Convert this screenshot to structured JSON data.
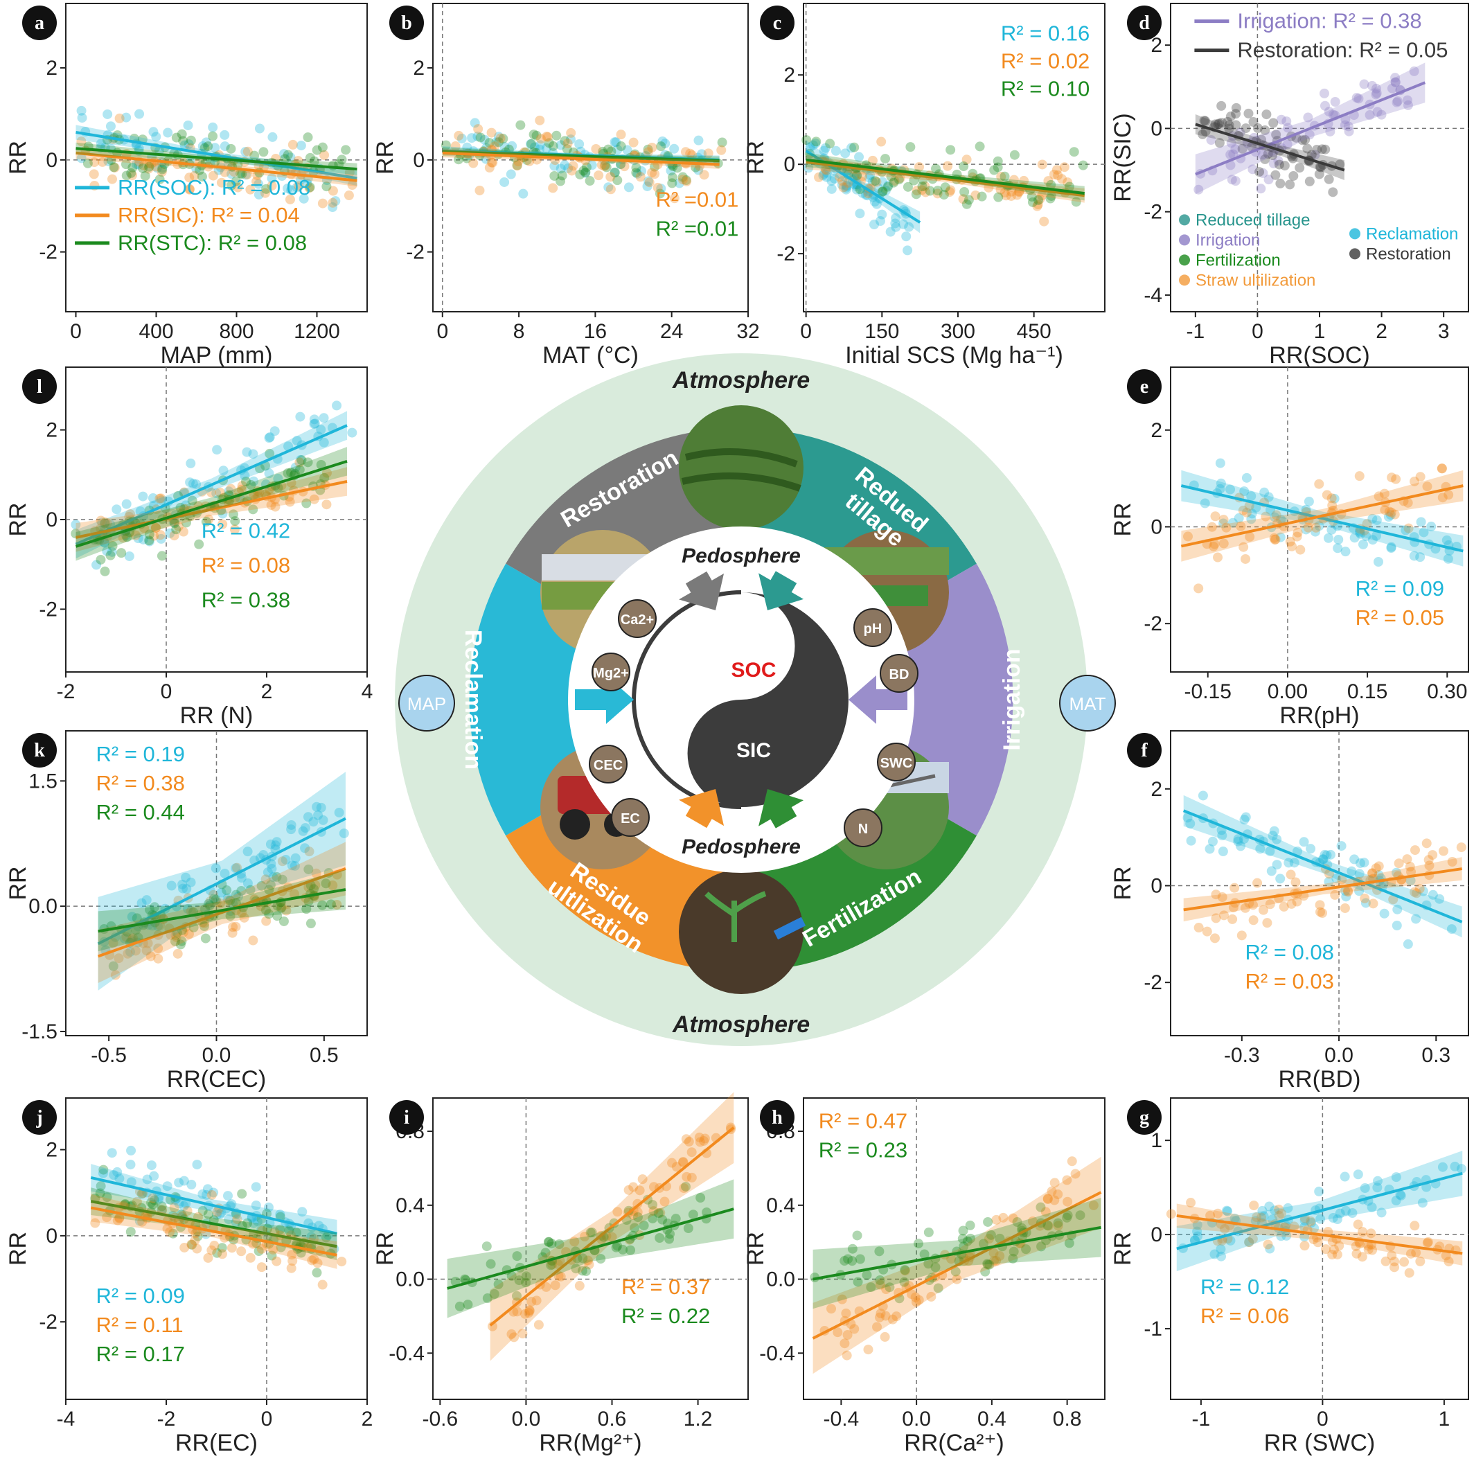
{
  "colors": {
    "soc": "#1fb6d9",
    "sic": "#f28a1e",
    "stc": "#1b8a1e",
    "irrigation": "#8c7dc4",
    "restoration": "#3a3a3a",
    "reduced_tillage": "#27948c",
    "straw": "#f29a3a",
    "reclamation_band": "#29b9d6",
    "restoration_band": "#7a7a7a",
    "tillage_band": "#2c9a90",
    "irrigation_band": "#9a8ecb",
    "fertilization_band": "#2f8f35",
    "residue_band": "#f2922a",
    "atmosphere_ring": "#d9ebdc"
  },
  "center": {
    "atmosphere_top": "Atmosphere",
    "atmosphere_bottom": "Atmosphere",
    "pedosphere_top": "Pedosphere",
    "pedosphere_bottom": "Pedosphere",
    "soc": "SOC",
    "sic": "SIC",
    "map": "MAP",
    "mat": "MAT",
    "practices": [
      "Restoration",
      "Redued tillage",
      "Irrigation",
      "Fertilization",
      "Residue ultlization",
      "Reclamation"
    ],
    "properties": [
      "Ca2+",
      "Mg2+",
      "CEC",
      "EC",
      "pH",
      "BD",
      "SWC",
      "N"
    ]
  },
  "chart_data": [
    {
      "id": "a",
      "type": "scatter",
      "xlabel": "MAP (mm)",
      "ylabel": "RR",
      "xlim": [
        -50,
        1450
      ],
      "ylim": [
        -3.3,
        3.4
      ],
      "xticks": [
        0,
        400,
        800,
        1200
      ],
      "yticks": [
        -2,
        0,
        2
      ],
      "refx": null,
      "refy": 0,
      "series": [
        {
          "name": "RR(SOC)",
          "color": "soc",
          "fit": [
            [
              0,
              0.6
            ],
            [
              1400,
              -0.4
            ]
          ],
          "band": 0.1
        },
        {
          "name": "RR(SIC)",
          "color": "sic",
          "fit": [
            [
              0,
              0.15
            ],
            [
              1400,
              -0.45
            ]
          ],
          "band": 0.08
        },
        {
          "name": "RR(STC)",
          "color": "stc",
          "fit": [
            [
              0,
              0.25
            ],
            [
              1400,
              -0.2
            ]
          ],
          "band": 0.08
        }
      ],
      "labels": [
        {
          "text": "RR(SOC): R² = 0.08",
          "color": "soc"
        },
        {
          "text": "RR(SIC): R² = 0.04",
          "color": "sic"
        },
        {
          "text": "RR(STC): R² = 0.08",
          "color": "stc"
        }
      ]
    },
    {
      "id": "b",
      "type": "scatter",
      "xlabel": "MAT (°C)",
      "ylabel": "RR",
      "xlim": [
        -1,
        32
      ],
      "ylim": [
        -3.3,
        3.4
      ],
      "xticks": [
        0,
        8,
        16,
        24,
        32
      ],
      "yticks": [
        -2,
        0,
        2
      ],
      "refx": 0,
      "refy": 0,
      "series": [
        {
          "name": "",
          "color": "soc",
          "fit": [
            [
              0,
              0.2
            ],
            [
              29,
              0.0
            ]
          ],
          "band": 0.06
        },
        {
          "name": "",
          "color": "stc",
          "fit": [
            [
              0,
              0.18
            ],
            [
              29,
              -0.02
            ]
          ],
          "band": 0.06
        },
        {
          "name": "",
          "color": "sic",
          "fit": [
            [
              0,
              0.15
            ],
            [
              29,
              -0.1
            ]
          ],
          "band": 0.06
        }
      ],
      "labels": [
        {
          "text": "R² =0.01",
          "color": "sic"
        },
        {
          "text": "R² =0.01",
          "color": "stc"
        }
      ]
    },
    {
      "id": "c",
      "type": "scatter",
      "xlabel": "Initial SCS (Mg  ha⁻¹)",
      "ylabel": "RR",
      "xlim": [
        -5,
        590
      ],
      "ylim": [
        -3.3,
        3.6
      ],
      "xticks": [
        0,
        150,
        300,
        450
      ],
      "yticks": [
        -2,
        0,
        2
      ],
      "refx": 0,
      "refy": 0,
      "series": [
        {
          "name": "",
          "color": "soc",
          "fit": [
            [
              0,
              0.3
            ],
            [
              225,
              -1.3
            ]
          ],
          "band": 0.15
        },
        {
          "name": "",
          "color": "sic",
          "fit": [
            [
              0,
              0.05
            ],
            [
              550,
              -0.7
            ]
          ],
          "band": 0.1
        },
        {
          "name": "",
          "color": "stc",
          "fit": [
            [
              0,
              0.1
            ],
            [
              550,
              -0.65
            ]
          ],
          "band": 0.1
        }
      ],
      "labels": [
        {
          "text": "R² = 0.16",
          "color": "soc"
        },
        {
          "text": "R² = 0.02",
          "color": "sic"
        },
        {
          "text": "R² = 0.10",
          "color": "stc"
        }
      ]
    },
    {
      "id": "d",
      "type": "scatter",
      "xlabel": "RR(SOC)",
      "ylabel": "RR(SIC)",
      "xlim": [
        -1.4,
        3.4
      ],
      "ylim": [
        -4.4,
        3.0
      ],
      "xticks": [
        -1,
        0,
        1,
        2,
        3
      ],
      "yticks": [
        -4,
        -2,
        0,
        2
      ],
      "refx": 0,
      "refy": 0,
      "series": [
        {
          "name": "Irrigation",
          "color": "irrigation",
          "fit": [
            [
              -1.0,
              -1.1
            ],
            [
              2.7,
              1.1
            ]
          ],
          "band": 0.3
        },
        {
          "name": "Restoration",
          "color": "restoration",
          "fit": [
            [
              -1.0,
              0.1
            ],
            [
              1.4,
              -1.0
            ]
          ],
          "band": 0.15
        }
      ],
      "labels": [
        {
          "text": "Irrigation: R² = 0.38",
          "color": "irrigation"
        },
        {
          "text": "Restoration: R² = 0.05",
          "color": "restoration"
        }
      ],
      "legend": [
        {
          "text": "Reduced tillage",
          "color": "reduced_tillage"
        },
        {
          "text": "Irrigation",
          "color": "irrigation"
        },
        {
          "text": "Fertilization",
          "color": "stc"
        },
        {
          "text": "Straw ultilization",
          "color": "straw"
        },
        {
          "text": "Reclamation",
          "color": "soc"
        },
        {
          "text": "Restoration",
          "color": "restoration"
        }
      ]
    },
    {
      "id": "l",
      "type": "scatter",
      "xlabel": "RR (N)",
      "ylabel": "RR",
      "xlim": [
        -2,
        4
      ],
      "ylim": [
        -3.4,
        3.4
      ],
      "xticks": [
        -2,
        0,
        2,
        4
      ],
      "yticks": [
        -2,
        0,
        2
      ],
      "refx": 0,
      "refy": 0,
      "series": [
        {
          "name": "",
          "color": "soc",
          "fit": [
            [
              -1.8,
              -0.55
            ],
            [
              3.6,
              2.1
            ]
          ],
          "band": 0.2
        },
        {
          "name": "",
          "color": "sic",
          "fit": [
            [
              -1.8,
              -0.4
            ],
            [
              3.6,
              0.85
            ]
          ],
          "band": 0.2
        },
        {
          "name": "",
          "color": "stc",
          "fit": [
            [
              -1.8,
              -0.6
            ],
            [
              3.6,
              1.3
            ]
          ],
          "band": 0.2
        }
      ],
      "labels": [
        {
          "text": "R² = 0.42",
          "color": "soc"
        },
        {
          "text": "R² = 0.08",
          "color": "sic"
        },
        {
          "text": "R² = 0.38",
          "color": "stc"
        }
      ]
    },
    {
      "id": "e",
      "type": "scatter",
      "xlabel": "RR(pH)",
      "ylabel": "RR",
      "xlim": [
        -0.22,
        0.34
      ],
      "ylim": [
        -3.0,
        3.3
      ],
      "xticks": [
        -0.15,
        0.0,
        0.15,
        0.3
      ],
      "xticklabels": [
        "-0.15",
        "0.00",
        "0.15",
        "0.30"
      ],
      "yticks": [
        -2,
        0,
        2
      ],
      "refx": 0,
      "refy": 0,
      "series": [
        {
          "name": "",
          "color": "soc",
          "fit": [
            [
              -0.2,
              0.85
            ],
            [
              0.33,
              -0.5
            ]
          ],
          "band": 0.2
        },
        {
          "name": "",
          "color": "sic",
          "fit": [
            [
              -0.2,
              -0.4
            ],
            [
              0.33,
              0.85
            ]
          ],
          "band": 0.2
        }
      ],
      "labels": [
        {
          "text": "R² = 0.09",
          "color": "soc"
        },
        {
          "text": "R² = 0.05",
          "color": "sic"
        }
      ]
    },
    {
      "id": "k",
      "type": "scatter",
      "xlabel": "RR(CEC)",
      "ylabel": "RR",
      "xlim": [
        -0.7,
        0.7
      ],
      "ylim": [
        -1.55,
        2.1
      ],
      "xticks": [
        -0.5,
        0.0,
        0.5
      ],
      "xticklabels": [
        "-0.5",
        "0.0",
        "0.5"
      ],
      "yticks": [
        -1.5,
        0.0,
        1.5
      ],
      "yticklabels": [
        "-1.5",
        "0.0",
        "1.5"
      ],
      "refx": 0,
      "refy": 0,
      "series": [
        {
          "name": "",
          "color": "soc",
          "fit": [
            [
              -0.55,
              -0.45
            ],
            [
              0.6,
              1.05
            ]
          ],
          "band": 0.35
        },
        {
          "name": "",
          "color": "sic",
          "fit": [
            [
              -0.55,
              -0.6
            ],
            [
              0.6,
              0.45
            ]
          ],
          "band": 0.2
        },
        {
          "name": "",
          "color": "stc",
          "fit": [
            [
              -0.55,
              -0.3
            ],
            [
              0.6,
              0.2
            ]
          ],
          "band": 0.15
        }
      ],
      "labels": [
        {
          "text": "R² = 0.19",
          "color": "soc"
        },
        {
          "text": "R² = 0.38",
          "color": "sic"
        },
        {
          "text": "R² = 0.44",
          "color": "stc"
        }
      ]
    },
    {
      "id": "f",
      "type": "scatter",
      "xlabel": "RR(BD)",
      "ylabel": "RR",
      "xlim": [
        -0.52,
        0.4
      ],
      "ylim": [
        -3.1,
        3.2
      ],
      "xticks": [
        -0.3,
        0.0,
        0.3
      ],
      "xticklabels": [
        "-0.3",
        "0.0",
        "0.3"
      ],
      "yticks": [
        -2,
        0,
        2
      ],
      "refx": 0,
      "refy": 0,
      "series": [
        {
          "name": "",
          "color": "soc",
          "fit": [
            [
              -0.48,
              1.55
            ],
            [
              0.38,
              -0.75
            ]
          ],
          "band": 0.2
        },
        {
          "name": "",
          "color": "sic",
          "fit": [
            [
              -0.48,
              -0.5
            ],
            [
              0.38,
              0.35
            ]
          ],
          "band": 0.15
        }
      ],
      "labels": [
        {
          "text": "R² = 0.08",
          "color": "soc"
        },
        {
          "text": "R² = 0.03",
          "color": "sic"
        }
      ]
    },
    {
      "id": "j",
      "type": "scatter",
      "xlabel": "RR(EC)",
      "ylabel": "RR",
      "xlim": [
        -4,
        2
      ],
      "ylim": [
        -3.8,
        3.2
      ],
      "xticks": [
        -4,
        -2,
        0,
        2
      ],
      "yticks": [
        -2,
        0,
        2
      ],
      "refx": 0,
      "refy": 0,
      "series": [
        {
          "name": "",
          "color": "soc",
          "fit": [
            [
              -3.5,
              1.35
            ],
            [
              1.4,
              0.05
            ]
          ],
          "band": 0.2
        },
        {
          "name": "",
          "color": "stc",
          "fit": [
            [
              -3.5,
              0.8
            ],
            [
              1.4,
              -0.25
            ]
          ],
          "band": 0.2
        },
        {
          "name": "",
          "color": "sic",
          "fit": [
            [
              -3.5,
              0.65
            ],
            [
              1.4,
              -0.45
            ]
          ],
          "band": 0.2
        }
      ],
      "labels": [
        {
          "text": "R² = 0.09",
          "color": "soc"
        },
        {
          "text": "R² = 0.11",
          "color": "sic"
        },
        {
          "text": "R² = 0.17",
          "color": "stc"
        }
      ]
    },
    {
      "id": "i",
      "type": "scatter",
      "xlabel": "RR(Mg²⁺)",
      "ylabel": "RR",
      "xlim": [
        -0.65,
        1.55
      ],
      "ylim": [
        -0.65,
        0.98
      ],
      "xticks": [
        -0.6,
        0.0,
        0.6,
        1.2
      ],
      "xticklabels": [
        "-0.6",
        "0.0",
        "0.6",
        "1.2"
      ],
      "yticks": [
        -0.4,
        0.0,
        0.4,
        0.8
      ],
      "yticklabels": [
        "-0.4",
        "0.0",
        "0.4",
        "0.8"
      ],
      "refx": 0,
      "refy": 0,
      "series": [
        {
          "name": "",
          "color": "sic",
          "fit": [
            [
              -0.25,
              -0.25
            ],
            [
              1.45,
              0.82
            ]
          ],
          "band": 0.12
        },
        {
          "name": "",
          "color": "stc",
          "fit": [
            [
              -0.55,
              -0.05
            ],
            [
              1.45,
              0.38
            ]
          ],
          "band": 0.1
        }
      ],
      "labels": [
        {
          "text": "R² = 0.37",
          "color": "sic"
        },
        {
          "text": "R² = 0.22",
          "color": "stc"
        }
      ]
    },
    {
      "id": "h",
      "type": "scatter",
      "xlabel": "RR(Ca²⁺)",
      "ylabel": "RR",
      "xlim": [
        -0.6,
        1.0
      ],
      "ylim": [
        -0.65,
        0.98
      ],
      "xticks": [
        -0.4,
        0.0,
        0.4,
        0.8
      ],
      "xticklabels": [
        "-0.4",
        "0.0",
        "0.4",
        "0.8"
      ],
      "yticks": [
        -0.4,
        0.0,
        0.4,
        0.8
      ],
      "yticklabels": [
        "-0.4",
        "0.0",
        "0.4",
        "0.8"
      ],
      "refx": 0,
      "refy": 0,
      "series": [
        {
          "name": "",
          "color": "sic",
          "fit": [
            [
              -0.55,
              -0.32
            ],
            [
              0.98,
              0.47
            ]
          ],
          "band": 0.12
        },
        {
          "name": "",
          "color": "stc",
          "fit": [
            [
              -0.55,
              0.0
            ],
            [
              0.98,
              0.28
            ]
          ],
          "band": 0.1
        }
      ],
      "labels": [
        {
          "text": "R² = 0.47",
          "color": "sic"
        },
        {
          "text": "R² = 0.23",
          "color": "stc"
        }
      ]
    },
    {
      "id": "g",
      "type": "scatter",
      "xlabel": "RR (SWC)",
      "ylabel": "RR",
      "xlim": [
        -1.25,
        1.2
      ],
      "ylim": [
        -1.75,
        1.45
      ],
      "xticks": [
        -1,
        0,
        1
      ],
      "yticks": [
        -1,
        0,
        1
      ],
      "refx": 0,
      "refy": 0,
      "series": [
        {
          "name": "",
          "color": "soc",
          "fit": [
            [
              -1.2,
              -0.15
            ],
            [
              1.15,
              0.65
            ]
          ],
          "band": 0.15
        },
        {
          "name": "",
          "color": "sic",
          "fit": [
            [
              -1.2,
              0.2
            ],
            [
              1.15,
              -0.2
            ]
          ],
          "band": 0.08
        }
      ],
      "labels": [
        {
          "text": "R² = 0.12",
          "color": "soc"
        },
        {
          "text": "R² = 0.06",
          "color": "sic"
        }
      ]
    }
  ]
}
